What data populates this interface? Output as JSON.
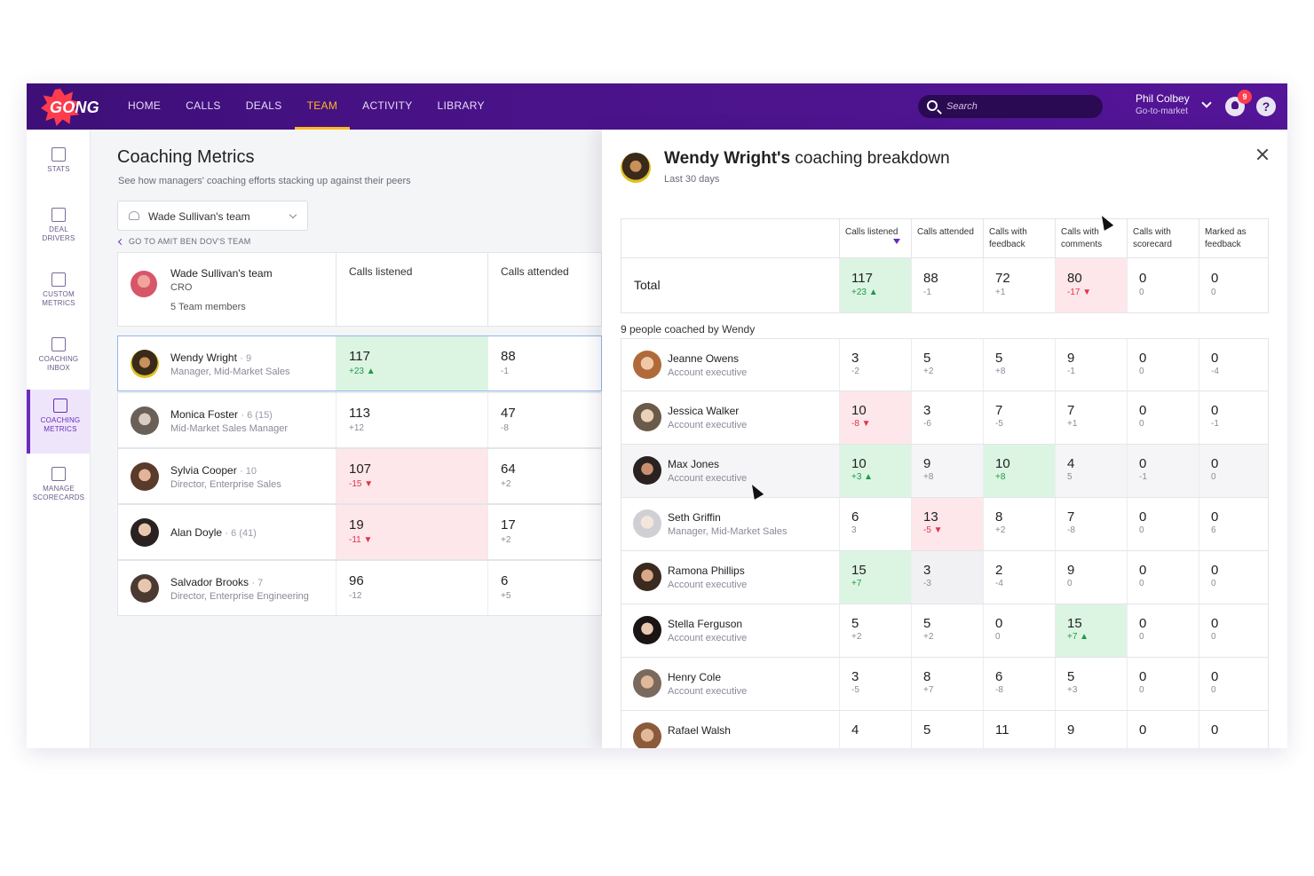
{
  "app": {
    "logo": "GONG",
    "nav": [
      "HOME",
      "CALLS",
      "DEALS",
      "TEAM",
      "ACTIVITY",
      "LIBRARY"
    ],
    "active_nav": "TEAM",
    "search_placeholder": "Search",
    "user_name": "Phil Colbey",
    "user_role": "Go-to-market",
    "notifications": "9",
    "help": "?"
  },
  "sidebar": [
    {
      "label": "STATS",
      "icon": "bar-chart-icon"
    },
    {
      "label": "DEAL DRIVERS",
      "icon": "deal-drivers-icon"
    },
    {
      "label": "CUSTOM METRICS",
      "icon": "custom-metrics-icon"
    },
    {
      "label": "COACHING INBOX",
      "icon": "coaching-inbox-icon"
    },
    {
      "label": "COACHING METRICS",
      "icon": "coaching-metrics-icon",
      "active": true
    },
    {
      "label": "MANAGE SCORECARDS",
      "icon": "scorecards-icon"
    }
  ],
  "main": {
    "title": "Coaching Metrics",
    "subtitle": "See how managers' coaching efforts stacking up against their peers",
    "team_select": "Wade Sullivan's team",
    "goto_link": "GO TO AMIT BEN DOV'S TEAM",
    "team": {
      "name": "Wade Sullivan's team",
      "role": "CRO",
      "members": "5 Team members"
    },
    "columns": [
      "Calls listened",
      "Calls attended"
    ],
    "rows": [
      {
        "name": "Wendy Wright",
        "count": "9",
        "role": "Manager, Mid-Market Sales",
        "listened": "117",
        "listened_delta": "+23 ▲",
        "attended": "88",
        "attended_delta": "-1"
      },
      {
        "name": "Monica Foster",
        "count": "6 (15)",
        "role": "Mid-Market Sales Manager",
        "listened": "113",
        "listened_delta": "+12",
        "attended": "47",
        "attended_delta": "-8"
      },
      {
        "name": "Sylvia Cooper",
        "count": "10",
        "role": "Director, Enterprise Sales",
        "listened": "107",
        "listened_delta": "-15 ▼",
        "attended": "64",
        "attended_delta": "+2"
      },
      {
        "name": "Alan Doyle",
        "count": "6 (41)",
        "role": "",
        "listened": "19",
        "listened_delta": "-11 ▼",
        "attended": "17",
        "attended_delta": "+2"
      },
      {
        "name": "Salvador Brooks",
        "count": "7",
        "role": "Director, Enterprise Engineering",
        "listened": "96",
        "listened_delta": "-12",
        "attended": "6",
        "attended_delta": "+5"
      }
    ]
  },
  "panel": {
    "title_bold": "Wendy Wright's",
    "title_rest": " coaching breakdown",
    "subtitle": "Last 30 days",
    "columns": [
      "Calls listened",
      "Calls attended",
      "Calls with feedback",
      "Calls with comments",
      "Calls with scorecard",
      "Marked as feedback"
    ],
    "total_label": "Total",
    "totals": [
      {
        "v": "117",
        "d": "+23 ▲"
      },
      {
        "v": "88",
        "d": "-1"
      },
      {
        "v": "72",
        "d": "+1"
      },
      {
        "v": "80",
        "d": "-17 ▼"
      },
      {
        "v": "0",
        "d": "0"
      },
      {
        "v": "0",
        "d": "0"
      }
    ],
    "coached_label": "9 people coached by Wendy",
    "people": [
      {
        "name": "Jeanne Owens",
        "role": "Account executive",
        "cells": [
          [
            "3",
            "-2"
          ],
          [
            "5",
            "+2"
          ],
          [
            "5",
            "+8"
          ],
          [
            "9",
            "-1"
          ],
          [
            "0",
            "0"
          ],
          [
            "0",
            "-4"
          ]
        ]
      },
      {
        "name": "Jessica Walker",
        "role": "Account executive",
        "cells": [
          [
            "10",
            "-8 ▼"
          ],
          [
            "3",
            "-6"
          ],
          [
            "7",
            "-5"
          ],
          [
            "7",
            "+1"
          ],
          [
            "0",
            "0"
          ],
          [
            "0",
            "-1"
          ]
        ]
      },
      {
        "name": "Max Jones",
        "role": "Account executive",
        "cells": [
          [
            "10",
            "+3 ▲"
          ],
          [
            "9",
            "+8"
          ],
          [
            "10",
            "+8"
          ],
          [
            "4",
            "5"
          ],
          [
            "0",
            "-1"
          ],
          [
            "0",
            "0"
          ]
        ]
      },
      {
        "name": "Seth Griffin",
        "role": "Manager, Mid-Market Sales",
        "cells": [
          [
            "6",
            "3"
          ],
          [
            "13",
            "-5 ▼"
          ],
          [
            "8",
            "+2"
          ],
          [
            "7",
            "-8"
          ],
          [
            "0",
            "0"
          ],
          [
            "0",
            "6"
          ]
        ]
      },
      {
        "name": "Ramona Phillips",
        "role": "Account executive",
        "cells": [
          [
            "15",
            "+7"
          ],
          [
            "3",
            "-3"
          ],
          [
            "2",
            "-4"
          ],
          [
            "9",
            "0"
          ],
          [
            "0",
            "0"
          ],
          [
            "0",
            "0"
          ]
        ]
      },
      {
        "name": "Stella Ferguson",
        "role": "Account executive",
        "cells": [
          [
            "5",
            "+2"
          ],
          [
            "5",
            "+2"
          ],
          [
            "0",
            "0"
          ],
          [
            "15",
            "+7 ▲"
          ],
          [
            "0",
            "0"
          ],
          [
            "0",
            "0"
          ]
        ]
      },
      {
        "name": "Henry Cole",
        "role": "Account executive",
        "cells": [
          [
            "3",
            "-5"
          ],
          [
            "8",
            "+7"
          ],
          [
            "6",
            "-8"
          ],
          [
            "5",
            "+3"
          ],
          [
            "0",
            "0"
          ],
          [
            "0",
            "0"
          ]
        ]
      },
      {
        "name": "Rafael Walsh",
        "role": "",
        "cells": [
          [
            "4",
            ""
          ],
          [
            "5",
            ""
          ],
          [
            "11",
            ""
          ],
          [
            "9",
            ""
          ],
          [
            "0",
            ""
          ],
          [
            "0",
            ""
          ]
        ]
      }
    ]
  },
  "colors": {
    "nav_bg": "#4a1389",
    "accent": "#ffb923",
    "positive_bg": "#dcf5e2",
    "negative_bg": "#fde7ea",
    "positive": "#1d9a45",
    "negative": "#e0344a"
  }
}
